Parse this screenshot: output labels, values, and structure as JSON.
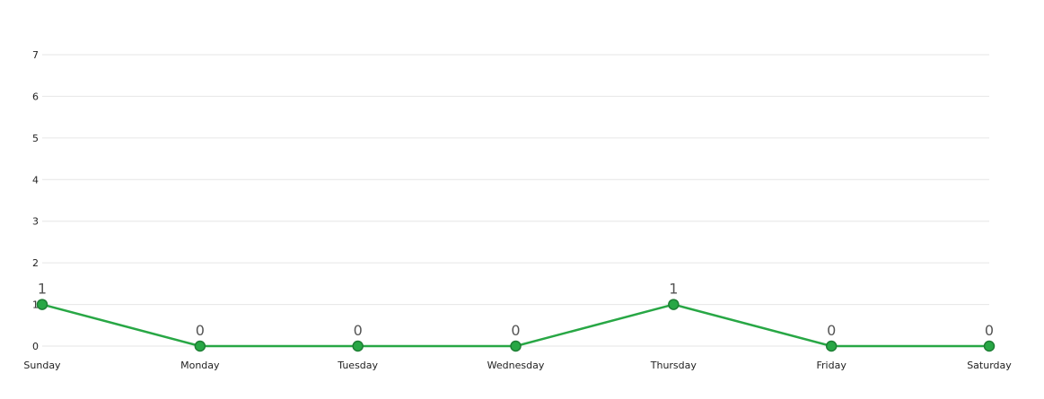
{
  "chart_data": {
    "type": "line",
    "title": "",
    "xlabel": "",
    "ylabel": "",
    "categories": [
      "Sunday",
      "Monday",
      "Tuesday",
      "Wednesday",
      "Thursday",
      "Friday",
      "Saturday"
    ],
    "series": [
      {
        "values": [
          1,
          0,
          0,
          0,
          1,
          0,
          0
        ],
        "color": "#28a745"
      }
    ],
    "y_ticks": [
      "0",
      "1",
      "2",
      "3",
      "4",
      "5",
      "6",
      "7"
    ],
    "ylim": [
      0,
      7
    ],
    "grid": true,
    "legend": "none",
    "data_labels": true
  }
}
